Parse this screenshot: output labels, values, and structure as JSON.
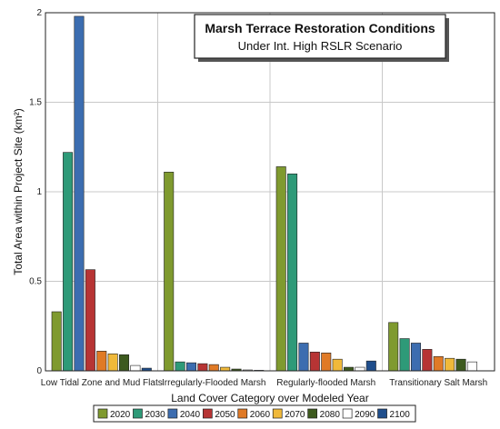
{
  "chart_data": {
    "type": "bar",
    "title": "Marsh Terrace Restoration Conditions",
    "subtitle": "Under Int. High RSLR Scenario",
    "xlabel": "Land Cover Category over Modeled Year",
    "ylabel": "Total Area within Project Site (km²)",
    "ylim": [
      0,
      2
    ],
    "yticks": [
      "0",
      "0.5",
      "1",
      "1.5",
      "2"
    ],
    "grid": true,
    "legend_position": "bottom",
    "categories": [
      "Low Tidal Zone and Mud Flats",
      "Irregularly-Flooded Marsh",
      "Regularly-flooded Marsh",
      "Transitionary Salt Marsh"
    ],
    "series": [
      {
        "name": "2020",
        "color": "#7f9a2f",
        "values": [
          0.33,
          1.11,
          1.14,
          0.27
        ]
      },
      {
        "name": "2030",
        "color": "#2e9a78",
        "values": [
          1.22,
          0.05,
          1.1,
          0.18
        ]
      },
      {
        "name": "2040",
        "color": "#3c6db0",
        "values": [
          1.98,
          0.045,
          0.155,
          0.155
        ]
      },
      {
        "name": "2050",
        "color": "#b73434",
        "values": [
          0.565,
          0.04,
          0.105,
          0.12
        ]
      },
      {
        "name": "2060",
        "color": "#e07a26",
        "values": [
          0.11,
          0.035,
          0.1,
          0.08
        ]
      },
      {
        "name": "2070",
        "color": "#f0b93a",
        "values": [
          0.095,
          0.02,
          0.065,
          0.07
        ]
      },
      {
        "name": "2080",
        "color": "#3d5a1e",
        "values": [
          0.09,
          0.01,
          0.02,
          0.065
        ]
      },
      {
        "name": "2090",
        "color": "#ffffff",
        "values": [
          0.03,
          0.005,
          0.02,
          0.05
        ]
      },
      {
        "name": "2100",
        "color": "#1f4e8c",
        "values": [
          0.015,
          0.003,
          0.055,
          0.0
        ]
      }
    ]
  }
}
